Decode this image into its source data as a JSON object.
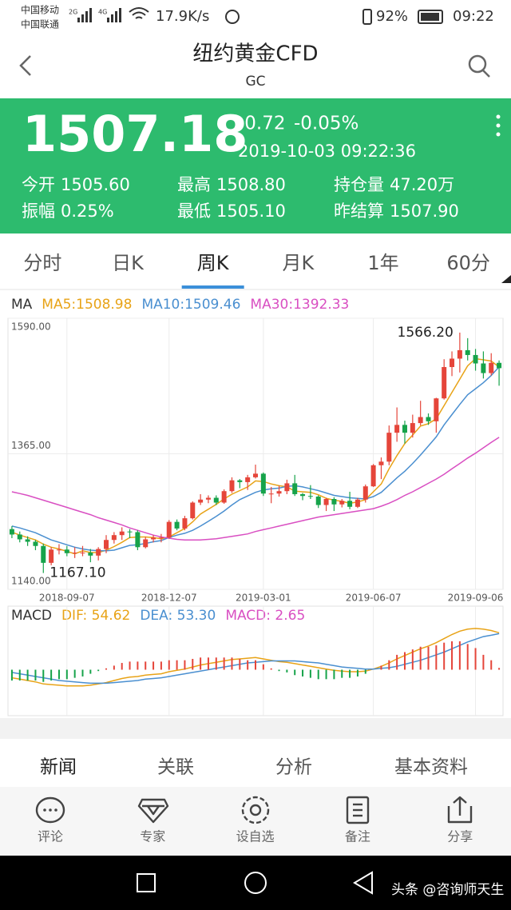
{
  "status_bar": {
    "carrier_1": "中国移动",
    "carrier_2": "中国联通",
    "net_1": "2G",
    "net_2": "4G",
    "speed": "17.9K/s",
    "battery": "92%",
    "time": "09:22"
  },
  "header": {
    "title": "纽约黄金CFD",
    "code": "GC"
  },
  "quote": {
    "price": "1507.18",
    "change": "-0.72",
    "change_pct": "-0.05%",
    "datetime": "2019-10-03 09:22:36",
    "stats": [
      {
        "label": "今开",
        "value": "1505.60"
      },
      {
        "label": "最高",
        "value": "1508.80"
      },
      {
        "label": "持仓量",
        "value": "47.20万"
      },
      {
        "label": "振幅",
        "value": "0.25%"
      },
      {
        "label": "最低",
        "value": "1505.10"
      },
      {
        "label": "昨结算",
        "value": "1507.90"
      }
    ]
  },
  "period_tabs": [
    "分时",
    "日K",
    "周K",
    "月K",
    "1年",
    "60分"
  ],
  "active_tab": "周K",
  "chart_data": [
    {
      "type": "candlestick",
      "legend_title": "MA",
      "categories": [
        null,
        null,
        null,
        null,
        null,
        null,
        null,
        "2018-09-07",
        null,
        null,
        null,
        null,
        null,
        null,
        null,
        null,
        null,
        null,
        null,
        null,
        "2018-12-07",
        null,
        null,
        null,
        null,
        null,
        null,
        null,
        null,
        null,
        null,
        null,
        "2019-03-01",
        null,
        null,
        null,
        null,
        null,
        null,
        null,
        null,
        null,
        null,
        null,
        null,
        null,
        "2019-06-07",
        null,
        null,
        null,
        null,
        null,
        null,
        null,
        null,
        null,
        null,
        null,
        null,
        "2019-09-06",
        null,
        null,
        null
      ],
      "open": [
        1240,
        1231,
        1223,
        1219,
        1212,
        1184,
        1206,
        1206,
        1200,
        1201,
        1201,
        1196,
        1207,
        1222,
        1230,
        1236,
        1235,
        1210,
        1223,
        1226,
        1226,
        1252,
        1241,
        1258,
        1284,
        1289,
        1292,
        1284,
        1303,
        1321,
        1318,
        1326,
        1332,
        1299,
        1299,
        1303,
        1316,
        1298,
        1295,
        1294,
        1280,
        1290,
        1281,
        1287,
        1277,
        1289,
        1311,
        1346,
        1352,
        1400,
        1413,
        1400,
        1416,
        1426,
        1419,
        1457,
        1509,
        1523,
        1537,
        1529,
        1515,
        1499,
        1516
      ],
      "high": [
        1245,
        1236,
        1228,
        1222,
        1216,
        1210,
        1215,
        1212,
        1210,
        1212,
        1207,
        1210,
        1230,
        1235,
        1243,
        1240,
        1238,
        1227,
        1230,
        1232,
        1255,
        1256,
        1262,
        1286,
        1298,
        1296,
        1296,
        1306,
        1326,
        1323,
        1330,
        1347,
        1334,
        1310,
        1312,
        1322,
        1330,
        1300,
        1313,
        1296,
        1292,
        1293,
        1290,
        1302,
        1292,
        1314,
        1348,
        1359,
        1412,
        1442,
        1420,
        1430,
        1453,
        1432,
        1458,
        1522,
        1535,
        1566.2,
        1557,
        1539,
        1535,
        1532,
        1520
      ],
      "low": [
        1225,
        1218,
        1212,
        1205,
        1167.1,
        1180,
        1198,
        1195,
        1192,
        1195,
        1185,
        1188,
        1200,
        1216,
        1222,
        1225,
        1205,
        1208,
        1218,
        1218,
        1224,
        1238,
        1238,
        1256,
        1280,
        1283,
        1280,
        1282,
        1300,
        1308,
        1305,
        1324,
        1295,
        1283,
        1294,
        1298,
        1295,
        1288,
        1290,
        1275,
        1270,
        1270,
        1276,
        1273,
        1275,
        1284,
        1310,
        1323,
        1346,
        1385,
        1382,
        1392,
        1412,
        1413,
        1400,
        1455,
        1494,
        1500,
        1520,
        1503,
        1490,
        1495,
        1478
      ],
      "close": [
        1231,
        1223,
        1219,
        1212,
        1184,
        1206,
        1206,
        1200,
        1201,
        1201,
        1196,
        1207,
        1222,
        1230,
        1236,
        1235,
        1210,
        1223,
        1226,
        1226,
        1252,
        1241,
        1258,
        1284,
        1289,
        1292,
        1284,
        1303,
        1321,
        1318,
        1326,
        1332,
        1299,
        1299,
        1303,
        1316,
        1298,
        1295,
        1294,
        1280,
        1290,
        1281,
        1287,
        1277,
        1289,
        1311,
        1346,
        1352,
        1400,
        1413,
        1400,
        1416,
        1426,
        1419,
        1457,
        1509,
        1523,
        1537,
        1529,
        1515,
        1499,
        1516,
        1507.18
      ],
      "up_color": "#e5453a",
      "down_color": "#16a34a",
      "series": [
        {
          "name": "MA5:1508.98",
          "color": "#e8a317",
          "values": [
            1235,
            1230,
            1226,
            1222,
            1215,
            1210,
            1207,
            1203,
            1199,
            1204,
            1201,
            1201,
            1205,
            1211,
            1218,
            1226,
            1227,
            1227,
            1226,
            1224,
            1227,
            1234,
            1241,
            1252,
            1265,
            1273,
            1281,
            1290,
            1298,
            1304,
            1310,
            1320,
            1319,
            1315,
            1312,
            1310,
            1303,
            1302,
            1301,
            1297,
            1291,
            1288,
            1286,
            1283,
            1285,
            1289,
            1302,
            1315,
            1340,
            1362,
            1382,
            1396,
            1411,
            1415,
            1423,
            1445,
            1467,
            1489,
            1511,
            1523,
            1521,
            1519,
            1508.98
          ]
        },
        {
          "name": "MA10:1509.46",
          "color": "#4a8fd0",
          "values": [
            1245,
            1242,
            1238,
            1234,
            1228,
            1222,
            1218,
            1214,
            1210,
            1207,
            1205,
            1204,
            1204,
            1205,
            1209,
            1213,
            1214,
            1216,
            1219,
            1221,
            1226,
            1230,
            1233,
            1238,
            1245,
            1253,
            1261,
            1270,
            1280,
            1289,
            1295,
            1301,
            1305,
            1307,
            1308,
            1311,
            1312,
            1310,
            1307,
            1304,
            1300,
            1296,
            1294,
            1292,
            1291,
            1290,
            1294,
            1301,
            1313,
            1325,
            1336,
            1349,
            1363,
            1378,
            1393,
            1413,
            1430,
            1447,
            1463,
            1473,
            1483,
            1495,
            1509.46
          ]
        },
        {
          "name": "MA30:1392.33",
          "color": "#d94fc2",
          "values": [
            1302,
            1299,
            1296,
            1292,
            1288,
            1284,
            1280,
            1276,
            1272,
            1268,
            1264,
            1259,
            1255,
            1251,
            1247,
            1242,
            1238,
            1234,
            1230,
            1227,
            1225,
            1223,
            1222,
            1222,
            1222,
            1223,
            1224,
            1226,
            1228,
            1230,
            1232,
            1236,
            1239,
            1242,
            1245,
            1248,
            1251,
            1254,
            1257,
            1260,
            1262,
            1264,
            1266,
            1268,
            1270,
            1272,
            1274,
            1278,
            1283,
            1289,
            1296,
            1302,
            1309,
            1316,
            1323,
            1331,
            1340,
            1349,
            1358,
            1366,
            1375,
            1384,
            1392.33
          ]
        }
      ],
      "ylim": [
        1140,
        1590
      ],
      "yticks": [
        {
          "value": 1590,
          "label": "1590.00"
        },
        {
          "value": 1365,
          "label": "1365.00"
        },
        {
          "value": 1140,
          "label": "1140.00"
        }
      ],
      "annotations": [
        {
          "value": 1566.2,
          "label": "1566.20"
        },
        {
          "value": 1167.1,
          "label": "1167.10"
        }
      ],
      "grid": true
    },
    {
      "type": "macd",
      "legend_title": "MACD",
      "up_color": "#e5453a",
      "down_color": "#16a34a",
      "series": [
        {
          "name": "DIF: 54.62",
          "color": "#e8a317",
          "values": [
            -12,
            -14,
            -16,
            -18,
            -21,
            -22,
            -23,
            -24,
            -24,
            -24,
            -23,
            -21,
            -19,
            -16,
            -13,
            -11,
            -10,
            -8,
            -7,
            -6,
            -3,
            -1,
            1,
            4,
            7,
            9,
            11,
            13,
            15,
            16,
            17,
            18,
            16,
            14,
            12,
            11,
            9,
            7,
            5,
            3,
            1,
            -1,
            -2,
            -3,
            -3,
            -2,
            1,
            5,
            10,
            16,
            21,
            26,
            31,
            35,
            40,
            46,
            52,
            57,
            60,
            61,
            60,
            58,
            54.62
          ]
        },
        {
          "name": "DEA: 53.30",
          "color": "#4a8fd0",
          "values": [
            -4,
            -6,
            -8,
            -10,
            -12,
            -14,
            -16,
            -17,
            -18,
            -19,
            -20,
            -20,
            -20,
            -19,
            -18,
            -17,
            -16,
            -14,
            -13,
            -12,
            -10,
            -8,
            -6,
            -4,
            -2,
            0,
            2,
            4,
            6,
            8,
            10,
            11,
            12,
            13,
            13,
            13,
            13,
            12,
            11,
            10,
            8,
            6,
            4,
            3,
            2,
            1,
            1,
            2,
            3,
            5,
            8,
            11,
            14,
            18,
            22,
            26,
            31,
            36,
            41,
            45,
            49,
            51,
            53.3
          ]
        },
        {
          "name": "MACD: 2.65",
          "color": "#d94fc2",
          "type": "bar",
          "values": [
            -16,
            -16,
            -16,
            -16,
            -18,
            -16,
            -14,
            -14,
            -12,
            -10,
            -6,
            -2,
            2,
            6,
            10,
            12,
            12,
            12,
            12,
            12,
            14,
            14,
            14,
            16,
            18,
            18,
            18,
            18,
            18,
            16,
            14,
            14,
            8,
            2,
            -2,
            -4,
            -8,
            -10,
            -12,
            -14,
            -14,
            -14,
            -12,
            -12,
            -10,
            -6,
            0,
            6,
            14,
            22,
            26,
            30,
            34,
            34,
            36,
            40,
            42,
            42,
            38,
            32,
            22,
            14,
            2.65
          ]
        }
      ],
      "ylim": [
        -68,
        68
      ]
    }
  ],
  "info_tabs": [
    "新闻",
    "关联",
    "分析",
    "基本资料"
  ],
  "toolbar": [
    "评论",
    "专家",
    "设自选",
    "备注",
    "分享"
  ],
  "watermark": "头条 @咨询师天生"
}
